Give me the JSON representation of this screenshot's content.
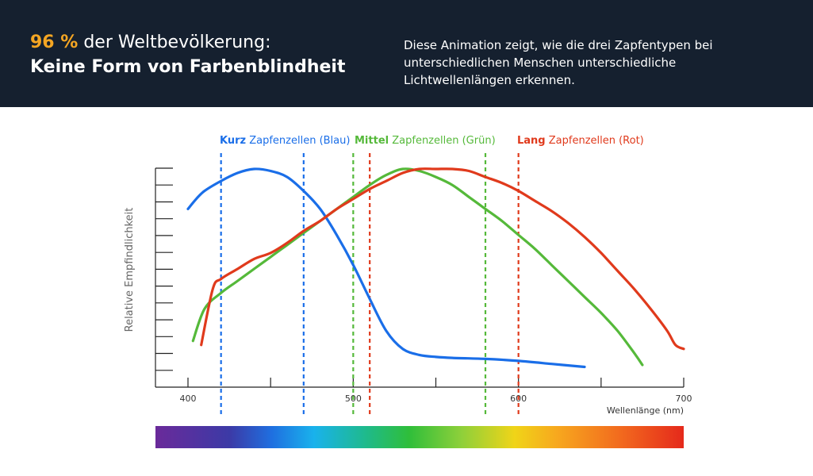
{
  "header": {
    "headline_pct": "96 %",
    "headline_rest": " der Weltbevölkerung:",
    "headline_line2": "Keine Form von Farbenblindheit",
    "description": "Diese Animation zeigt, wie die drei Zapfentypen bei unterschiedlichen Menschen unterschiedliche Lichtwellenlängen erkennen."
  },
  "colors": {
    "header_bg": "#15202f",
    "accent": "#f5a623",
    "short": "#1a6ee8",
    "medium": "#55b93a",
    "long": "#e03a1c"
  },
  "chart_data": {
    "type": "line",
    "title": "",
    "xlabel": "Wellenlänge (nm)",
    "ylabel": "Relative Empfindlichkeit",
    "xlim": [
      380,
      700
    ],
    "ylim": [
      0,
      1
    ],
    "x_ticks": [
      400,
      500,
      600,
      700
    ],
    "y_tick_count": 13,
    "legend": [
      {
        "key": "short",
        "bold": "Kurz",
        "rest": " Zapfenzellen (Blau)"
      },
      {
        "key": "medium",
        "bold": "Mittel",
        "rest": " Zapfenzellen (Grün)"
      },
      {
        "key": "long",
        "bold": "Lang",
        "rest": " Zapfenzellen (Rot)"
      }
    ],
    "series": [
      {
        "name": "Kurz Zapfenzellen (Blau)",
        "key": "short",
        "x": [
          400,
          405,
          410,
          420,
          430,
          440,
          450,
          460,
          470,
          480,
          490,
          500,
          510,
          520,
          530,
          540,
          550,
          560,
          580,
          600,
          620,
          640
        ],
        "y": [
          0.8,
          0.85,
          0.89,
          0.94,
          0.98,
          1.0,
          0.99,
          0.96,
          0.89,
          0.8,
          0.67,
          0.52,
          0.35,
          0.19,
          0.1,
          0.07,
          0.06,
          0.055,
          0.05,
          0.04,
          0.025,
          0.01
        ]
      },
      {
        "name": "Mittel Zapfenzellen (Grün)",
        "key": "medium",
        "x": [
          403,
          410,
          420,
          430,
          440,
          450,
          460,
          470,
          480,
          490,
          500,
          510,
          520,
          530,
          540,
          550,
          560,
          570,
          580,
          590,
          600,
          610,
          620,
          630,
          640,
          650,
          660,
          670,
          675
        ],
        "y": [
          0.14,
          0.3,
          0.38,
          0.44,
          0.5,
          0.56,
          0.62,
          0.68,
          0.74,
          0.8,
          0.86,
          0.92,
          0.97,
          1.0,
          0.99,
          0.96,
          0.92,
          0.86,
          0.8,
          0.74,
          0.67,
          0.6,
          0.52,
          0.44,
          0.36,
          0.28,
          0.19,
          0.08,
          0.02
        ]
      },
      {
        "name": "Lang Zapfenzellen (Rot)",
        "key": "long",
        "x": [
          408,
          415,
          420,
          430,
          440,
          450,
          460,
          470,
          480,
          490,
          500,
          510,
          520,
          530,
          540,
          550,
          560,
          570,
          580,
          590,
          600,
          610,
          620,
          630,
          640,
          650,
          660,
          670,
          680,
          690,
          695,
          700
        ],
        "y": [
          0.12,
          0.4,
          0.45,
          0.5,
          0.55,
          0.58,
          0.63,
          0.69,
          0.74,
          0.8,
          0.85,
          0.9,
          0.94,
          0.98,
          1.0,
          1.0,
          1.0,
          0.99,
          0.96,
          0.93,
          0.89,
          0.84,
          0.79,
          0.73,
          0.66,
          0.58,
          0.49,
          0.4,
          0.3,
          0.19,
          0.12,
          0.1
        ]
      }
    ],
    "markers": [
      {
        "key": "short",
        "x": 420
      },
      {
        "key": "short",
        "x": 470
      },
      {
        "key": "medium",
        "x": 500
      },
      {
        "key": "long",
        "x": 510
      },
      {
        "key": "medium",
        "x": 580
      },
      {
        "key": "long",
        "x": 600
      }
    ]
  }
}
